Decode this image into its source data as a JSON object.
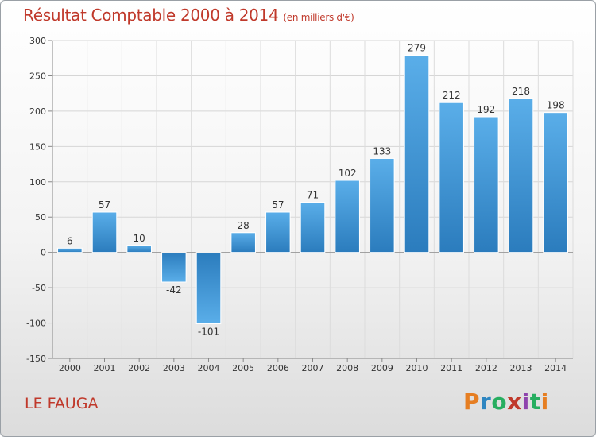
{
  "title": "Résultat Comptable 2000 à 2014",
  "subtitle": "(en milliers d'€)",
  "commune": "LE FAUGA",
  "logo": {
    "text": "Proxiti",
    "letters": [
      "P",
      "r",
      "o",
      "x",
      "i",
      "t",
      "i"
    ],
    "colors": [
      "#e67e22",
      "#2e86c1",
      "#27ae60",
      "#c0392b",
      "#8e44ad",
      "#27ae60",
      "#e67e22"
    ]
  },
  "chart_data": {
    "type": "bar",
    "title": "Résultat Comptable 2000 à 2014",
    "subtitle": "(en milliers d'€)",
    "categories": [
      "2000",
      "2001",
      "2002",
      "2003",
      "2004",
      "2005",
      "2006",
      "2007",
      "2008",
      "2009",
      "2010",
      "2011",
      "2012",
      "2013",
      "2014"
    ],
    "values": [
      6,
      57,
      10,
      -42,
      -101,
      28,
      57,
      71,
      102,
      133,
      279,
      212,
      192,
      218,
      198
    ],
    "labels": [
      "6",
      "57",
      "10",
      "-42",
      "-101",
      "28",
      "57",
      "71",
      "102",
      "133",
      "279",
      "212",
      "192",
      "218",
      "198"
    ],
    "ylim": [
      -150,
      300
    ],
    "yticks": [
      -150,
      -100,
      -50,
      0,
      50,
      100,
      150,
      200,
      250,
      300
    ],
    "ytick_labels": [
      "-150",
      "-100",
      "-50",
      "0",
      "50",
      "100",
      "150",
      "200",
      "250",
      "300"
    ],
    "grid": true,
    "legend": "none",
    "bar_color_top": "#5aa9e6",
    "bar_color_bottom": "#2a7fc1"
  }
}
